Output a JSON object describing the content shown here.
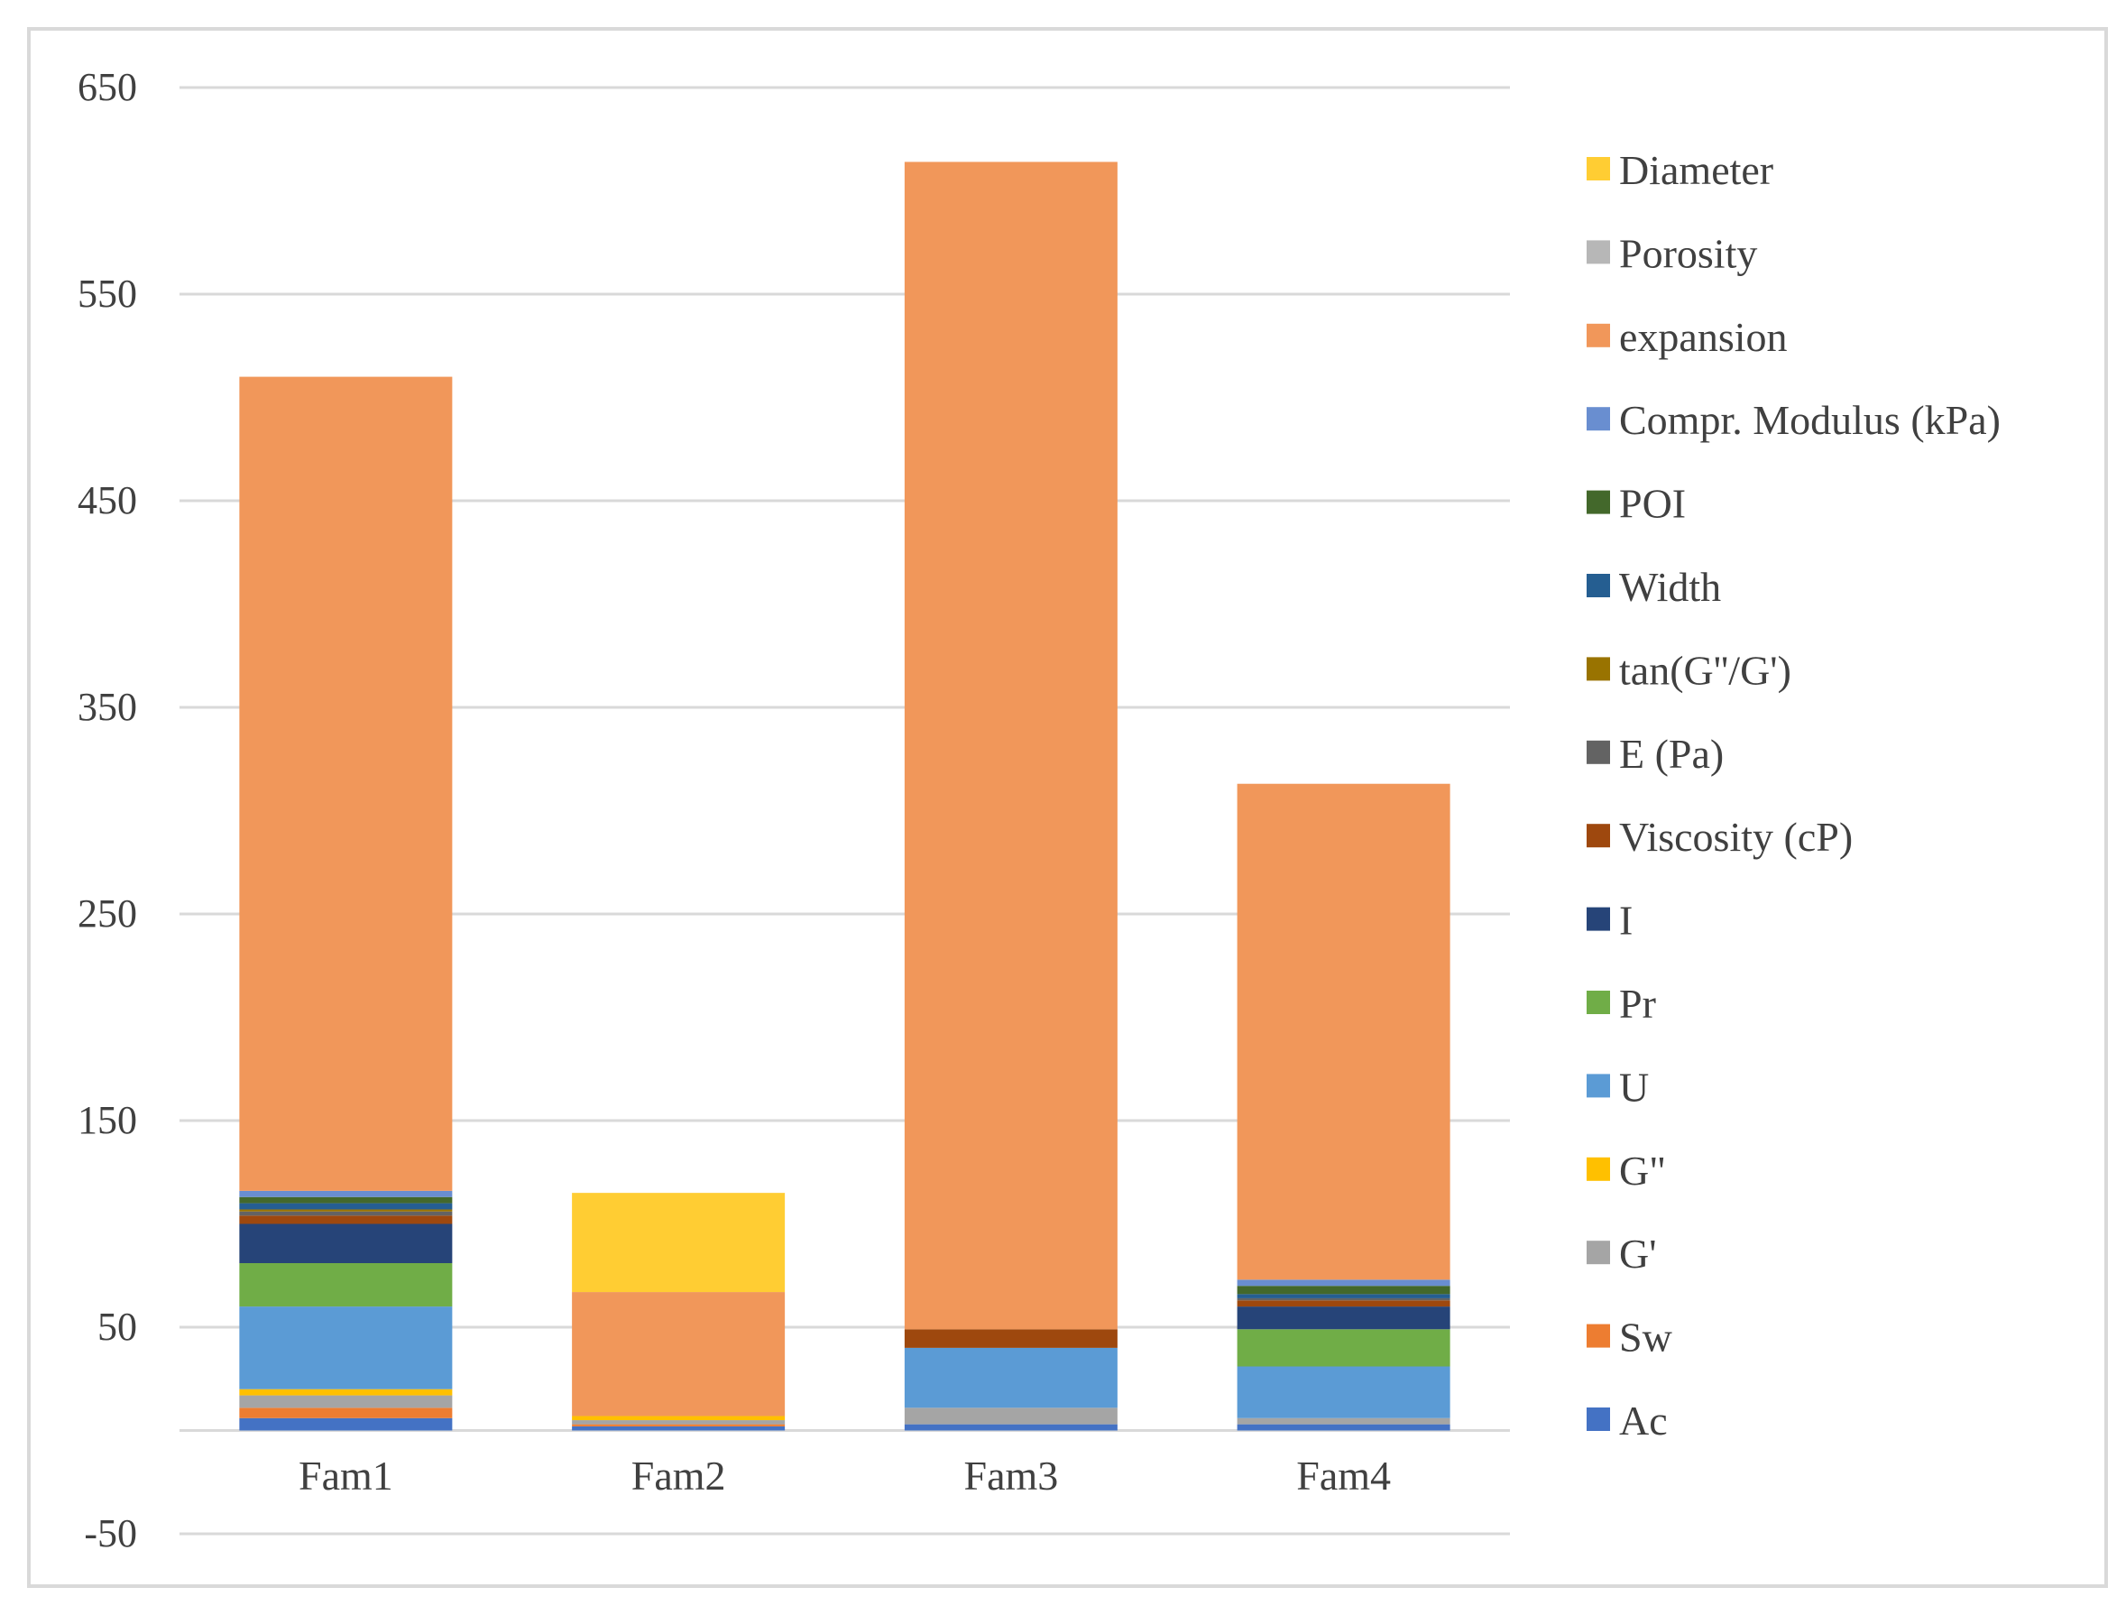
{
  "chart_data": {
    "type": "bar",
    "stacked": true,
    "categories": [
      "Fam1",
      "Fam2",
      "Fam3",
      "Fam4"
    ],
    "ylim": [
      -50,
      650
    ],
    "yticks": [
      650,
      550,
      450,
      350,
      250,
      150,
      50,
      -50
    ],
    "ytick_labels": [
      "650",
      "550",
      "450",
      "350",
      "250",
      "150",
      "50",
      "-50"
    ],
    "grid": true,
    "legend_position": "right",
    "series": [
      {
        "name": "Ac",
        "color": "#4472C4",
        "values": [
          6,
          2,
          3,
          3
        ]
      },
      {
        "name": "Sw",
        "color": "#ED7D31",
        "values": [
          5,
          1,
          0,
          0
        ]
      },
      {
        "name": "G'",
        "color": "#A5A5A5",
        "values": [
          6,
          2,
          8,
          3
        ]
      },
      {
        "name": "G\"",
        "color": "#FFC000",
        "values": [
          3,
          2,
          0,
          0
        ]
      },
      {
        "name": "U",
        "color": "#5B9BD5",
        "values": [
          40,
          0,
          29,
          25
        ]
      },
      {
        "name": "Pr",
        "color": "#70AD47",
        "values": [
          21,
          0,
          0,
          18
        ]
      },
      {
        "name": "I",
        "color": "#264478",
        "values": [
          19,
          0,
          0,
          11
        ]
      },
      {
        "name": "Viscosity (cP)",
        "color": "#9E480E",
        "values": [
          4,
          0,
          9,
          3
        ]
      },
      {
        "name": "E (Pa)",
        "color": "#636363",
        "values": [
          2,
          0,
          0,
          1
        ]
      },
      {
        "name": "tan(G''/G')",
        "color": "#997300",
        "values": [
          1,
          0,
          0,
          0
        ]
      },
      {
        "name": "Width",
        "color": "#255E91",
        "values": [
          3,
          0,
          0,
          2
        ]
      },
      {
        "name": "POI",
        "color": "#43682B",
        "values": [
          3,
          0,
          0,
          4
        ]
      },
      {
        "name": "Compr. Modulus (kPa)",
        "color": "#698ED0",
        "values": [
          3,
          0,
          0,
          3
        ]
      },
      {
        "name": "expansion",
        "color": "#F1975A",
        "values": [
          394,
          60,
          565,
          240
        ]
      },
      {
        "name": "Porosity",
        "color": "#B7B7B7",
        "values": [
          0,
          0,
          0,
          0
        ]
      },
      {
        "name": "Diameter",
        "color": "#FFCD33",
        "values": [
          0,
          48,
          0,
          0
        ]
      }
    ]
  }
}
